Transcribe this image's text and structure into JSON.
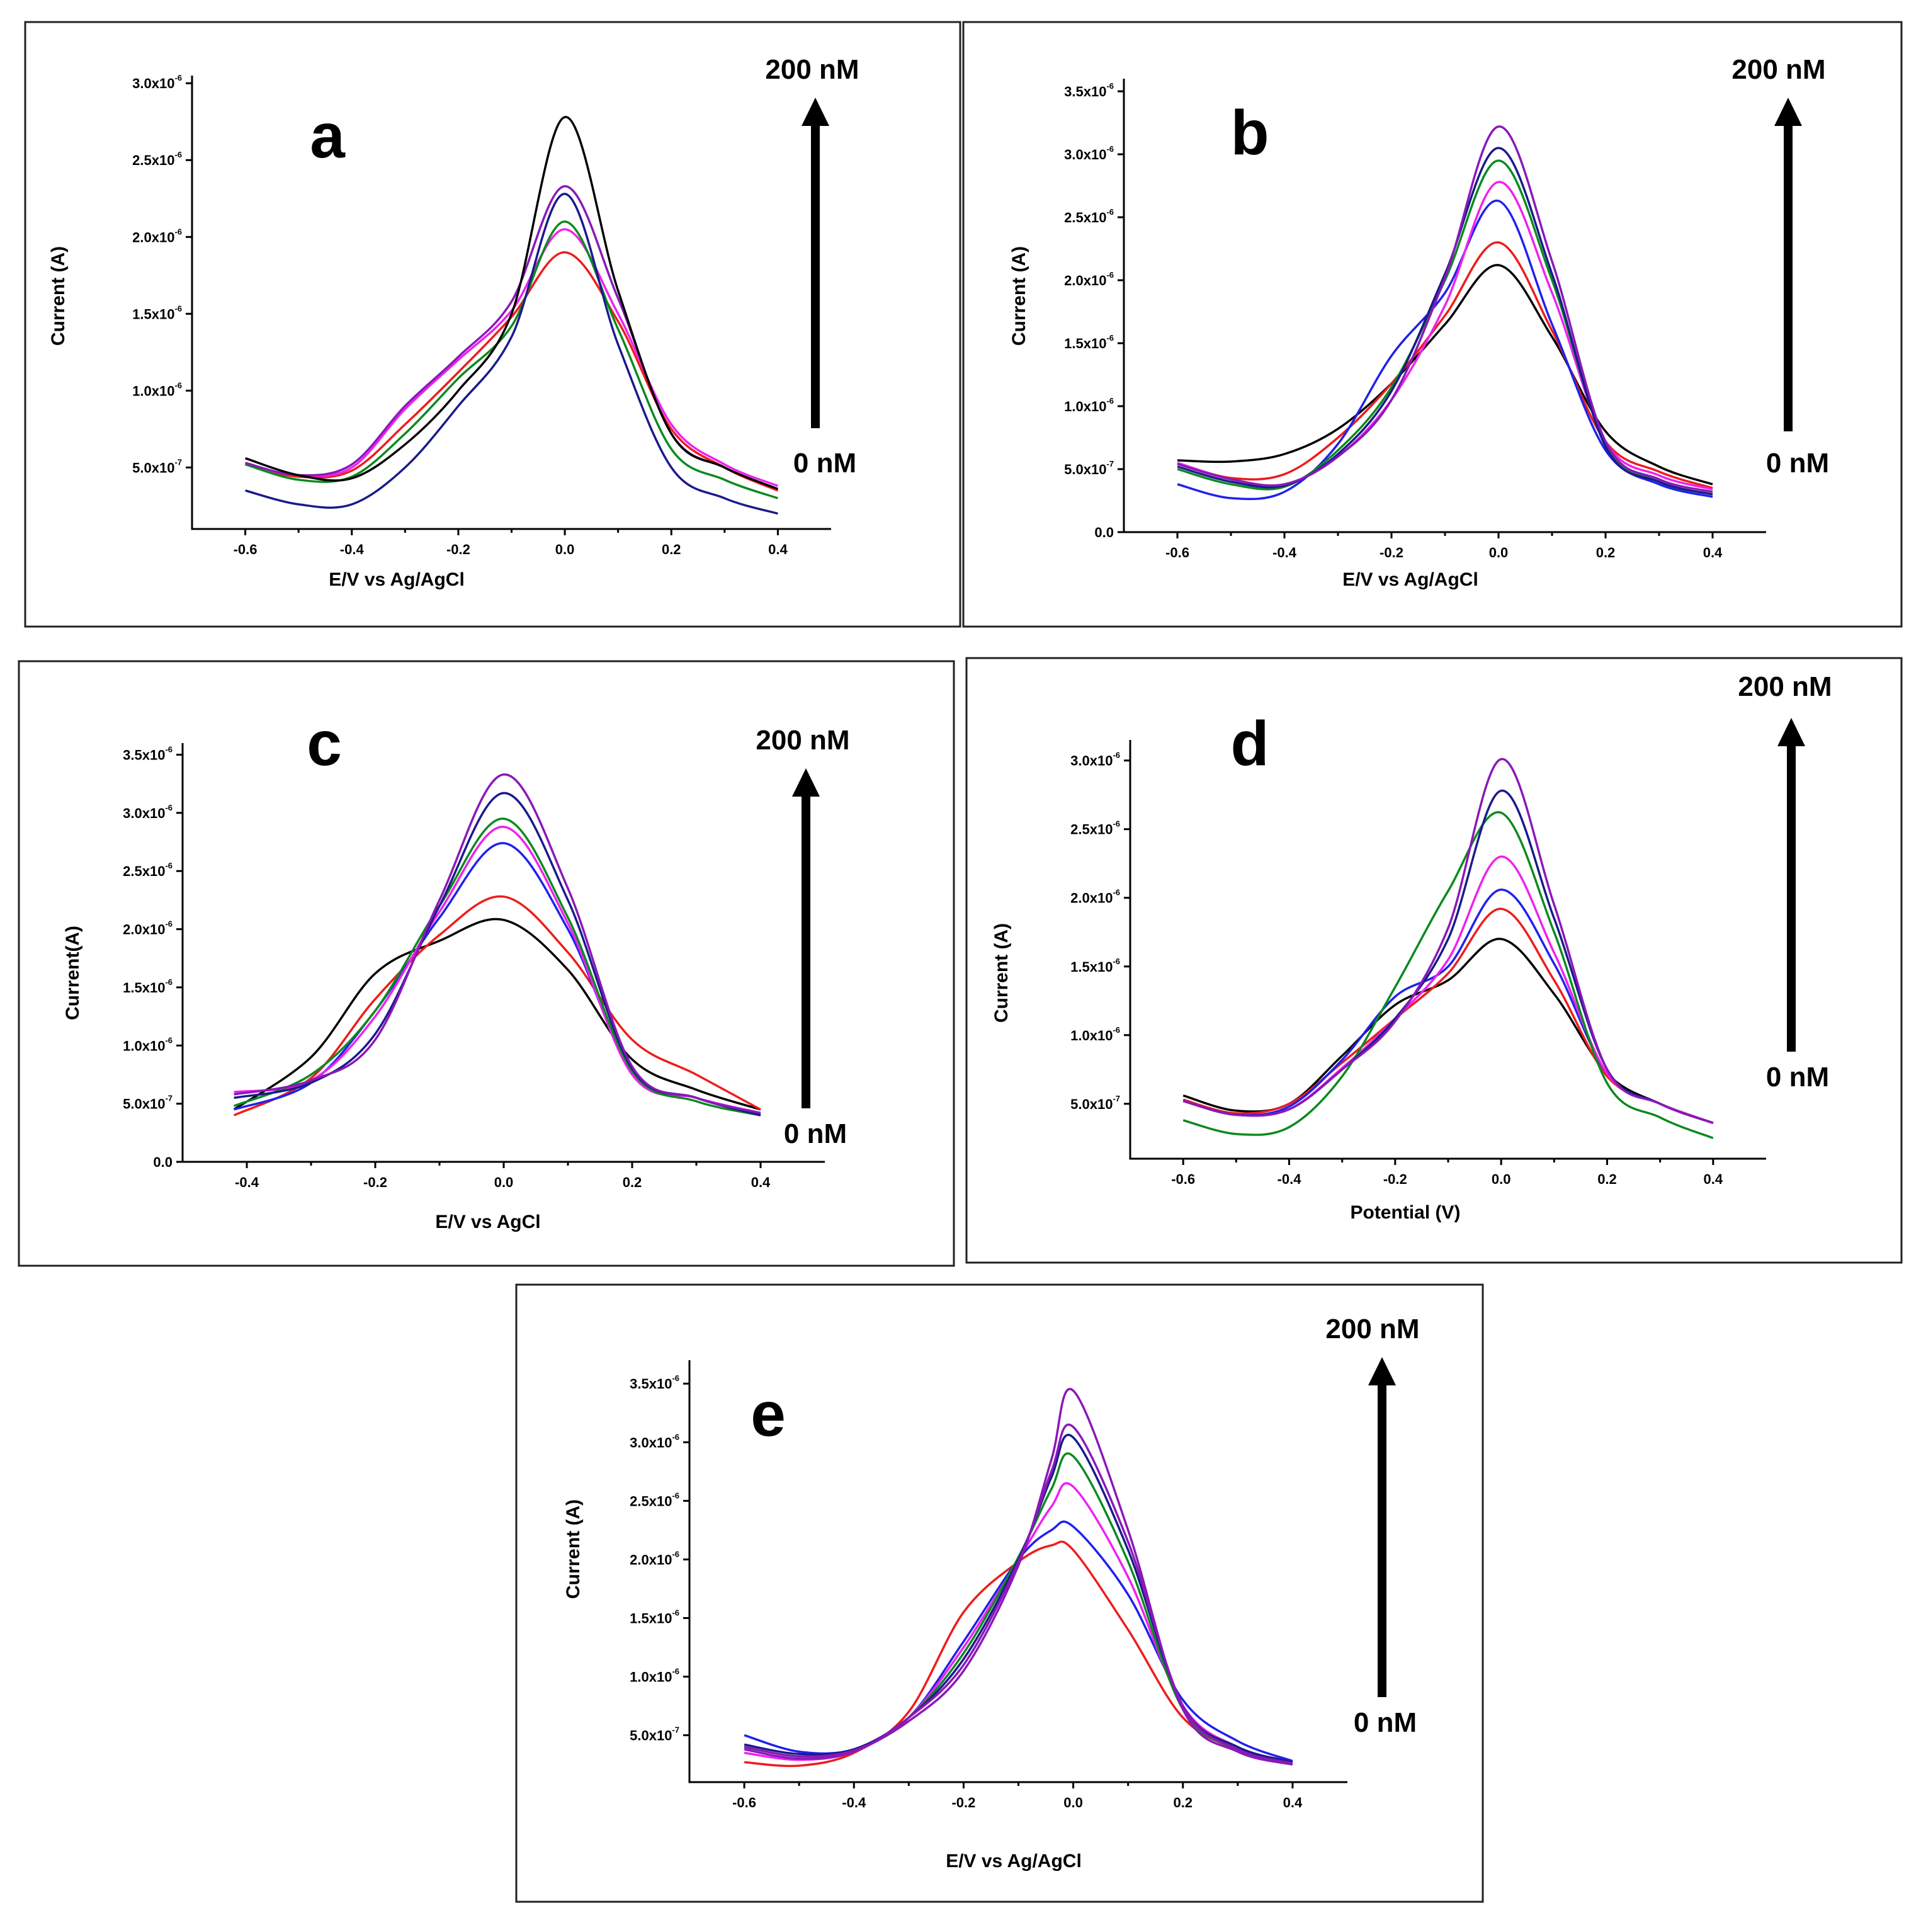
{
  "figure": {
    "colors": {
      "black": "#000000",
      "red": "#ee1c1c",
      "blue": "#2020ee",
      "magenta": "#ee22ee",
      "green": "#0a8a1e",
      "navy": "#1a1a8c",
      "violet": "#8a18b8"
    },
    "arrow_top_label": "200 nM",
    "arrow_bottom_label": "0 nM"
  },
  "chart_data": [
    {
      "id": "a",
      "type": "line",
      "panel_label": "a",
      "xlabel": "E/V vs Ag/AgCl",
      "ylabel": "Current (A)",
      "xlim": [
        -0.7,
        0.5
      ],
      "ylim": [
        1e-07,
        3.05e-06
      ],
      "x_ticks": [
        -0.6,
        -0.4,
        -0.2,
        0.0,
        0.2,
        0.4
      ],
      "x_tick_labels": [
        "-0.6",
        "-0.4",
        "-0.2",
        "0.0",
        "0.2",
        "0.4"
      ],
      "y_ticks": [
        5e-07,
        1e-06,
        1.5e-06,
        2e-06,
        2.5e-06,
        3e-06
      ],
      "y_tick_labels": [
        {
          "mantissa": "5.0x10",
          "exp": "-7"
        },
        {
          "mantissa": "1.0x10",
          "exp": "-6"
        },
        {
          "mantissa": "1.5x10",
          "exp": "-6"
        },
        {
          "mantissa": "2.0x10",
          "exp": "-6"
        },
        {
          "mantissa": "2.5x10",
          "exp": "-6"
        },
        {
          "mantissa": "3.0x10",
          "exp": "-6"
        }
      ],
      "x": [
        -0.6,
        -0.5,
        -0.4,
        -0.3,
        -0.2,
        -0.1,
        0.0,
        0.1,
        0.2,
        0.3,
        0.4
      ],
      "series": [
        {
          "name": "red",
          "color": "red",
          "values": [
            5.2e-07,
            4.4e-07,
            4.8e-07,
            7.8e-07,
            1.12e-06,
            1.48e-06,
            1.9e-06,
            1.45e-06,
            7.5e-07,
            5e-07,
            3.5e-07
          ]
        },
        {
          "name": "magenta",
          "color": "magenta",
          "values": [
            5.2e-07,
            4.5e-07,
            5e-07,
            8.8e-07,
            1.2e-06,
            1.52e-06,
            2.05e-06,
            1.5e-06,
            7.8e-07,
            5.2e-07,
            3.8e-07
          ]
        },
        {
          "name": "green",
          "color": "green",
          "values": [
            5.2e-07,
            4.2e-07,
            4.4e-07,
            7.2e-07,
            1.08e-06,
            1.42e-06,
            2.1e-06,
            1.4e-06,
            6.2e-07,
            4.2e-07,
            3e-07
          ]
        },
        {
          "name": "violet",
          "color": "violet",
          "values": [
            5.3e-07,
            4.5e-07,
            5.2e-07,
            9e-07,
            1.22e-06,
            1.58e-06,
            2.33e-06,
            1.6e-06,
            7.2e-07,
            5e-07,
            3.6e-07
          ]
        },
        {
          "name": "navy",
          "color": "navy",
          "values": [
            3.5e-07,
            2.6e-07,
            2.6e-07,
            5e-07,
            9e-07,
            1.35e-06,
            2.28e-06,
            1.3e-06,
            5e-07,
            3e-07,
            2e-07
          ]
        },
        {
          "name": "black",
          "color": "black",
          "values": [
            5.6e-07,
            4.5e-07,
            4.3e-07,
            6.5e-07,
            1e-06,
            1.5e-06,
            2.78e-06,
            1.65e-06,
            7.2e-07,
            5e-07,
            3.6e-07
          ]
        }
      ]
    },
    {
      "id": "b",
      "type": "line",
      "panel_label": "b",
      "xlabel": "E/V vs Ag/AgCl",
      "ylabel": "Current (A)",
      "xlim": [
        -0.7,
        0.5
      ],
      "ylim": [
        0.0,
        3.6e-06
      ],
      "x_ticks": [
        -0.6,
        -0.4,
        -0.2,
        0.0,
        0.2,
        0.4
      ],
      "x_tick_labels": [
        "-0.6",
        "-0.4",
        "-0.2",
        "0.0",
        "0.2",
        "0.4"
      ],
      "y_ticks": [
        0.0,
        5e-07,
        1e-06,
        1.5e-06,
        2e-06,
        2.5e-06,
        3e-06,
        3.5e-06
      ],
      "y_tick_labels": [
        {
          "mantissa": "0.0",
          "exp": ""
        },
        {
          "mantissa": "5.0x10",
          "exp": "-7"
        },
        {
          "mantissa": "1.0x10",
          "exp": "-6"
        },
        {
          "mantissa": "1.5x10",
          "exp": "-6"
        },
        {
          "mantissa": "2.0x10",
          "exp": "-6"
        },
        {
          "mantissa": "2.5x10",
          "exp": "-6"
        },
        {
          "mantissa": "3.0x10",
          "exp": "-6"
        },
        {
          "mantissa": "3.5x10",
          "exp": "-6"
        }
      ],
      "x": [
        -0.6,
        -0.5,
        -0.4,
        -0.3,
        -0.2,
        -0.1,
        0.0,
        0.1,
        0.2,
        0.3,
        0.4
      ],
      "series": [
        {
          "name": "black",
          "color": "black",
          "values": [
            5.7e-07,
            5.6e-07,
            6.2e-07,
            8.2e-07,
            1.18e-06,
            1.65e-06,
            2.12e-06,
            1.55e-06,
            8e-07,
            5.2e-07,
            3.8e-07
          ]
        },
        {
          "name": "red",
          "color": "red",
          "values": [
            5.5e-07,
            4.3e-07,
            4.6e-07,
            7.5e-07,
            1.18e-06,
            1.72e-06,
            2.3e-06,
            1.6e-06,
            7.2e-07,
            4.8e-07,
            3.5e-07
          ]
        },
        {
          "name": "blue",
          "color": "blue",
          "values": [
            3.8e-07,
            2.7e-07,
            3.2e-07,
            7e-07,
            1.4e-06,
            1.9e-06,
            2.63e-06,
            1.65e-06,
            6.5e-07,
            3.8e-07,
            2.8e-07
          ]
        },
        {
          "name": "magenta",
          "color": "magenta",
          "values": [
            5.5e-07,
            4.2e-07,
            3.8e-07,
            6e-07,
            1.05e-06,
            1.8e-06,
            2.78e-06,
            1.9e-06,
            7.2e-07,
            4.5e-07,
            3.4e-07
          ]
        },
        {
          "name": "green",
          "color": "green",
          "values": [
            5e-07,
            3.8e-07,
            3.6e-07,
            6.5e-07,
            1.15e-06,
            2e-06,
            2.95e-06,
            2e-06,
            7e-07,
            4e-07,
            3e-07
          ]
        },
        {
          "name": "navy",
          "color": "navy",
          "values": [
            5.2e-07,
            4e-07,
            3.7e-07,
            6.2e-07,
            1.12e-06,
            2.05e-06,
            3.05e-06,
            2.05e-06,
            6.8e-07,
            4e-07,
            3e-07
          ]
        },
        {
          "name": "violet",
          "color": "violet",
          "values": [
            5.4e-07,
            4.2e-07,
            3.8e-07,
            6e-07,
            1.05e-06,
            2.02e-06,
            3.22e-06,
            2.15e-06,
            7.2e-07,
            4.2e-07,
            3.2e-07
          ]
        }
      ]
    },
    {
      "id": "c",
      "type": "line",
      "panel_label": "c",
      "xlabel": "E/V vs AgCl",
      "ylabel": "Current(A)",
      "xlim": [
        -0.5,
        0.5
      ],
      "ylim": [
        0.0,
        3.6e-06
      ],
      "x_ticks": [
        -0.4,
        -0.2,
        0.0,
        0.2,
        0.4
      ],
      "x_tick_labels": [
        "-0.4",
        "-0.2",
        "0.0",
        "0.2",
        "0.4"
      ],
      "y_ticks": [
        0.0,
        5e-07,
        1e-06,
        1.5e-06,
        2e-06,
        2.5e-06,
        3e-06,
        3.5e-06
      ],
      "y_tick_labels": [
        {
          "mantissa": "0.0",
          "exp": ""
        },
        {
          "mantissa": "5.0x10",
          "exp": "-7"
        },
        {
          "mantissa": "1.0x10",
          "exp": "-6"
        },
        {
          "mantissa": "1.5x10",
          "exp": "-6"
        },
        {
          "mantissa": "2.0x10",
          "exp": "-6"
        },
        {
          "mantissa": "2.5x10",
          "exp": "-6"
        },
        {
          "mantissa": "3.0x10",
          "exp": "-6"
        },
        {
          "mantissa": "3.5x10",
          "exp": "-6"
        }
      ],
      "x": [
        -0.42,
        -0.3,
        -0.2,
        -0.1,
        0.0,
        0.1,
        0.2,
        0.3,
        0.4
      ],
      "series": [
        {
          "name": "black",
          "color": "black",
          "values": [
            4.5e-07,
            9e-07,
            1.62e-06,
            1.9e-06,
            2.08e-06,
            1.65e-06,
            8.8e-07,
            6.2e-07,
            4.5e-07
          ]
        },
        {
          "name": "red",
          "color": "red",
          "values": [
            4e-07,
            7.2e-07,
            1.4e-06,
            1.95e-06,
            2.28e-06,
            1.8e-06,
            1.05e-06,
            7.5e-07,
            4.5e-07
          ]
        },
        {
          "name": "blue",
          "color": "blue",
          "values": [
            4.5e-07,
            6.8e-07,
            1.3e-06,
            2.1e-06,
            2.74e-06,
            2e-06,
            7.8e-07,
            5.5e-07,
            4e-07
          ]
        },
        {
          "name": "magenta",
          "color": "magenta",
          "values": [
            6e-07,
            7e-07,
            1.25e-06,
            2.15e-06,
            2.88e-06,
            2.05e-06,
            7.5e-07,
            5.5e-07,
            4.2e-07
          ]
        },
        {
          "name": "green",
          "color": "green",
          "values": [
            4.8e-07,
            7.5e-07,
            1.3e-06,
            2.2e-06,
            2.95e-06,
            2.1e-06,
            7.8e-07,
            5.2e-07,
            4e-07
          ]
        },
        {
          "name": "navy",
          "color": "navy",
          "values": [
            5.5e-07,
            6.8e-07,
            1.1e-06,
            2.2e-06,
            3.17e-06,
            2.25e-06,
            8e-07,
            5.5e-07,
            4e-07
          ]
        },
        {
          "name": "violet",
          "color": "violet",
          "values": [
            5.8e-07,
            7e-07,
            1.05e-06,
            2.25e-06,
            3.33e-06,
            2.35e-06,
            8.2e-07,
            5.5e-07,
            4.2e-07
          ]
        }
      ]
    },
    {
      "id": "d",
      "type": "line",
      "panel_label": "d",
      "xlabel": "Potential (V)",
      "ylabel": "Current (A)",
      "xlim": [
        -0.7,
        0.5
      ],
      "ylim": [
        1e-07,
        3.15e-06
      ],
      "x_ticks": [
        -0.6,
        -0.4,
        -0.2,
        0.0,
        0.2,
        0.4
      ],
      "x_tick_labels": [
        "-0.6",
        "-0.4",
        "-0.2",
        "0.0",
        "0.2",
        "0.4"
      ],
      "y_ticks": [
        5e-07,
        1e-06,
        1.5e-06,
        2e-06,
        2.5e-06,
        3e-06
      ],
      "y_tick_labels": [
        {
          "mantissa": "5.0x10",
          "exp": "-7"
        },
        {
          "mantissa": "1.0x10",
          "exp": "-6"
        },
        {
          "mantissa": "1.5x10",
          "exp": "-6"
        },
        {
          "mantissa": "2.0x10",
          "exp": "-6"
        },
        {
          "mantissa": "2.5x10",
          "exp": "-6"
        },
        {
          "mantissa": "3.0x10",
          "exp": "-6"
        }
      ],
      "x": [
        -0.6,
        -0.5,
        -0.4,
        -0.3,
        -0.2,
        -0.1,
        0.0,
        0.1,
        0.2,
        0.3,
        0.4
      ],
      "series": [
        {
          "name": "black",
          "color": "black",
          "values": [
            5.6e-07,
            4.5e-07,
            5e-07,
            8.5e-07,
            1.22e-06,
            1.4e-06,
            1.7e-06,
            1.3e-06,
            7.2e-07,
            5e-07,
            3.6e-07
          ]
        },
        {
          "name": "red",
          "color": "red",
          "values": [
            5.3e-07,
            4.3e-07,
            5e-07,
            8e-07,
            1.12e-06,
            1.45e-06,
            1.92e-06,
            1.4e-06,
            7e-07,
            5e-07,
            3.6e-07
          ]
        },
        {
          "name": "blue",
          "color": "blue",
          "values": [
            5.2e-07,
            4.2e-07,
            4.8e-07,
            8.2e-07,
            1.28e-06,
            1.5e-06,
            2.06e-06,
            1.52e-06,
            7.2e-07,
            5e-07,
            3.6e-07
          ]
        },
        {
          "name": "magenta",
          "color": "magenta",
          "values": [
            5.2e-07,
            4.2e-07,
            4.6e-07,
            7.6e-07,
            1.12e-06,
            1.55e-06,
            2.3e-06,
            1.6e-06,
            7.2e-07,
            5e-07,
            3.6e-07
          ]
        },
        {
          "name": "green",
          "color": "green",
          "values": [
            3.8e-07,
            2.8e-07,
            3.3e-07,
            7e-07,
            1.35e-06,
            2.05e-06,
            2.62e-06,
            1.75e-06,
            6.5e-07,
            4e-07,
            2.5e-07
          ]
        },
        {
          "name": "navy",
          "color": "navy",
          "values": [
            5.2e-07,
            4.2e-07,
            4.6e-07,
            7.5e-07,
            1.12e-06,
            1.7e-06,
            2.78e-06,
            1.85e-06,
            7.5e-07,
            5e-07,
            3.6e-07
          ]
        },
        {
          "name": "violet",
          "color": "violet",
          "values": [
            5.2e-07,
            4.2e-07,
            4.6e-07,
            7.5e-07,
            1.1e-06,
            1.78e-06,
            3.01e-06,
            1.95e-06,
            7.5e-07,
            5e-07,
            3.6e-07
          ]
        }
      ]
    },
    {
      "id": "e",
      "type": "line",
      "panel_label": "e",
      "xlabel": "E/V vs Ag/AgCl",
      "ylabel": "Current (A)",
      "xlim": [
        -0.7,
        0.5
      ],
      "ylim": [
        1e-07,
        3.7e-06
      ],
      "x_ticks": [
        -0.6,
        -0.4,
        -0.2,
        0.0,
        0.2,
        0.4
      ],
      "x_tick_labels": [
        "-0.6",
        "-0.4",
        "-0.2",
        "0.0",
        "0.2",
        "0.4"
      ],
      "y_ticks": [
        5e-07,
        1e-06,
        1.5e-06,
        2e-06,
        2.5e-06,
        3e-06,
        3.5e-06
      ],
      "y_tick_labels": [
        {
          "mantissa": "5.0x10",
          "exp": "-7"
        },
        {
          "mantissa": "1.0x10",
          "exp": "-6"
        },
        {
          "mantissa": "1.5x10",
          "exp": "-6"
        },
        {
          "mantissa": "2.0x10",
          "exp": "-6"
        },
        {
          "mantissa": "2.5x10",
          "exp": "-6"
        },
        {
          "mantissa": "3.0x10",
          "exp": "-6"
        },
        {
          "mantissa": "3.5x10",
          "exp": "-6"
        }
      ],
      "x": [
        -0.6,
        -0.5,
        -0.4,
        -0.3,
        -0.2,
        -0.1,
        -0.04,
        0.0,
        0.1,
        0.2,
        0.3,
        0.4
      ],
      "series": [
        {
          "name": "red",
          "color": "red",
          "values": [
            2.7e-07,
            2.4e-07,
            3.5e-07,
            7e-07,
            1.55e-06,
            1.98e-06,
            2.12e-06,
            2.08e-06,
            1.4e-06,
            6.5e-07,
            3.8e-07,
            2.8e-07
          ]
        },
        {
          "name": "blue",
          "color": "blue",
          "values": [
            5e-07,
            3.6e-07,
            3.8e-07,
            6.5e-07,
            1.3e-06,
            2e-06,
            2.25e-06,
            2.28e-06,
            1.7e-06,
            8e-07,
            4.5e-07,
            2.8e-07
          ]
        },
        {
          "name": "magenta",
          "color": "magenta",
          "values": [
            3.5e-07,
            2.9e-07,
            3.6e-07,
            6.5e-07,
            1.25e-06,
            2e-06,
            2.45e-06,
            2.62e-06,
            1.85e-06,
            7.5e-07,
            4e-07,
            2.7e-07
          ]
        },
        {
          "name": "green",
          "color": "green",
          "values": [
            4e-07,
            3.2e-07,
            3.7e-07,
            6.5e-07,
            1.2e-06,
            2.02e-06,
            2.6e-06,
            2.88e-06,
            1.98e-06,
            7.2e-07,
            3.8e-07,
            2.7e-07
          ]
        },
        {
          "name": "navy",
          "color": "navy",
          "values": [
            4.2e-07,
            3.4e-07,
            3.8e-07,
            6.5e-07,
            1.15e-06,
            2e-06,
            2.7e-06,
            3.04e-06,
            2.08e-06,
            7.5e-07,
            4e-07,
            2.7e-07
          ]
        },
        {
          "name": "violet",
          "color": "violet",
          "values": [
            3.8e-07,
            3e-07,
            3.6e-07,
            6.5e-07,
            1.1e-06,
            1.98e-06,
            2.75e-06,
            3.13e-06,
            2.15e-06,
            7.5e-07,
            3.8e-07,
            2.6e-07
          ]
        },
        {
          "name": "purple-top",
          "color": "violet",
          "values": [
            4e-07,
            3.2e-07,
            3.7e-07,
            6.2e-07,
            1.05e-06,
            1.95e-06,
            2.85e-06,
            3.44e-06,
            2.25e-06,
            7.2e-07,
            3.6e-07,
            2.5e-07
          ]
        }
      ]
    }
  ]
}
